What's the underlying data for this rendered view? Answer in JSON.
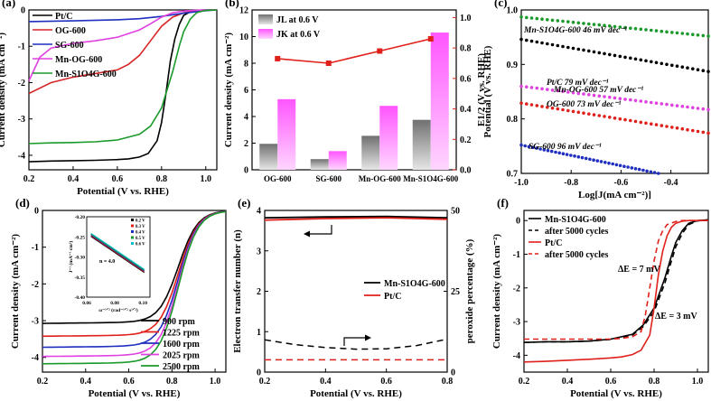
{
  "figure": {
    "description_free": true
  },
  "chart_data": [
    {
      "panel": "a",
      "type": "line",
      "panel_label": "(a)",
      "xlabel": "Potential (V vs. RHE)",
      "ylabel": "Current density (mA cm⁻²)",
      "xlim": [
        0.2,
        1.05
      ],
      "ylim": [
        -4.4,
        0.0
      ],
      "xticks": [
        0.2,
        0.4,
        0.6,
        0.8,
        1.0
      ],
      "xtick_labels": [
        "0.2",
        "0.4",
        "0.6",
        "0.8",
        "1.0"
      ],
      "yticks": [
        0,
        -1,
        -2,
        -3,
        -4
      ],
      "ytick_labels": [
        "0",
        "-1",
        "-2",
        "-3",
        "-4"
      ],
      "legend": [
        "Pt/C",
        "OG-600",
        "SG-600",
        "Mn-OG-600",
        "Mn-S1O4G-600"
      ],
      "series": [
        {
          "name": "Pt/C",
          "color": "#000000",
          "x": [
            0.2,
            0.3,
            0.4,
            0.5,
            0.6,
            0.65,
            0.7,
            0.74,
            0.78,
            0.8,
            0.82,
            0.84,
            0.86,
            0.88,
            0.9,
            0.93,
            0.96,
            1.0,
            1.05
          ],
          "y": [
            -4.18,
            -4.16,
            -4.15,
            -4.14,
            -4.12,
            -4.1,
            -4.05,
            -3.95,
            -3.6,
            -3.1,
            -2.3,
            -1.4,
            -0.8,
            -0.4,
            -0.15,
            -0.05,
            -0.01,
            0,
            0
          ]
        },
        {
          "name": "OG-600",
          "color": "#d62728",
          "x": [
            0.2,
            0.3,
            0.4,
            0.5,
            0.6,
            0.65,
            0.7,
            0.75,
            0.8,
            0.85,
            0.9,
            0.95,
            1.0,
            1.05
          ],
          "y": [
            -2.3,
            -2.0,
            -1.85,
            -1.75,
            -1.65,
            -1.5,
            -1.25,
            -0.85,
            -0.45,
            -0.2,
            -0.08,
            -0.03,
            -0.01,
            0
          ]
        },
        {
          "name": "SG-600",
          "color": "#1f2fbf",
          "x": [
            0.2,
            0.4,
            0.6,
            0.7,
            0.8,
            0.9,
            1.0,
            1.05
          ],
          "y": [
            -0.32,
            -0.3,
            -0.27,
            -0.24,
            -0.18,
            -0.09,
            -0.02,
            0
          ]
        },
        {
          "name": "Mn-OG-600",
          "color": "#e040e0",
          "x": [
            0.2,
            0.25,
            0.3,
            0.4,
            0.5,
            0.6,
            0.7,
            0.75,
            0.8,
            0.85,
            0.9,
            0.95,
            1.0,
            1.05
          ],
          "y": [
            -1.95,
            -1.3,
            -1.05,
            -0.92,
            -0.85,
            -0.75,
            -0.55,
            -0.38,
            -0.2,
            -0.08,
            -0.03,
            -0.01,
            0,
            0
          ]
        },
        {
          "name": "Mn-S1O4G-600",
          "color": "#1a9a2a",
          "x": [
            0.2,
            0.3,
            0.4,
            0.5,
            0.6,
            0.7,
            0.75,
            0.8,
            0.85,
            0.88,
            0.9,
            0.93,
            0.96,
            1.0,
            1.05
          ],
          "y": [
            -3.68,
            -3.66,
            -3.65,
            -3.63,
            -3.58,
            -3.42,
            -3.2,
            -2.7,
            -1.7,
            -1.0,
            -0.6,
            -0.25,
            -0.07,
            -0.01,
            0
          ]
        }
      ]
    },
    {
      "panel": "b",
      "type": "bar",
      "panel_label": "(b)",
      "categories": [
        "OG-600",
        "SG-600",
        "Mn-OG-600",
        "Mn-S1O4G-600"
      ],
      "ylabel": "Current density (mA cm⁻²)",
      "y2label": "E1/2 (V vs. RHE)",
      "ylim": [
        0,
        12
      ],
      "y2lim": [
        0,
        1.05
      ],
      "yticks": [
        0,
        2,
        4,
        6,
        8,
        10,
        12
      ],
      "y2ticks": [
        0,
        0.2,
        0.4,
        0.6,
        0.8,
        1.0
      ],
      "y2tick_labels": [
        "0.0",
        "0.2",
        "0.4",
        "0.6",
        "0.8",
        "1.0"
      ],
      "legend": [
        "JL at 0.6 V",
        "JK at 0.6 V"
      ],
      "series": [
        {
          "name": "JL at 0.6 V",
          "color": "#8c8c8c",
          "values": [
            1.95,
            0.8,
            2.55,
            3.75
          ]
        },
        {
          "name": "JK at 0.6 V",
          "color": "#ff66ff",
          "values": [
            5.3,
            1.4,
            4.8,
            10.3
          ]
        },
        {
          "name": "E1/2",
          "color": "#e0201a",
          "axis": "right",
          "values": [
            0.73,
            0.7,
            0.78,
            0.86
          ]
        }
      ]
    },
    {
      "panel": "c",
      "type": "scatter",
      "panel_label": "(c)",
      "xlabel": "Log[J(mA cm⁻²)]",
      "ylabel": "Potential (V vs. RHE)",
      "xlim": [
        -1.0,
        -0.25
      ],
      "ylim": [
        0.7,
        1.0
      ],
      "xticks": [
        -1.0,
        -0.8,
        -0.6,
        -0.4
      ],
      "xtick_labels": [
        "-1.0",
        "-0.8",
        "-0.6",
        "-0.4"
      ],
      "yticks": [
        0.7,
        0.8,
        0.9,
        1.0
      ],
      "ytick_labels": [
        "0.7",
        "0.8",
        "0.9",
        "1.0"
      ],
      "annotations": [
        "Mn-S1O4G-600 46 mV dec⁻¹",
        "Pt/C 79 mV dec⁻¹",
        "Mn-OG-600 57 mV dec⁻¹",
        "OG-600 73 mV dec⁻¹",
        "SG-600 96 mV dec⁻¹"
      ],
      "series": [
        {
          "name": "Mn-S1O4G-600",
          "color": "#1a9a2a",
          "x": [
            -1.0,
            -0.25
          ],
          "y": [
            0.987,
            0.952
          ]
        },
        {
          "name": "Pt/C",
          "color": "#000000",
          "x": [
            -1.0,
            -0.25
          ],
          "y": [
            0.946,
            0.887
          ]
        },
        {
          "name": "Mn-OG-600",
          "color": "#e040e0",
          "x": [
            -1.0,
            -0.25
          ],
          "y": [
            0.86,
            0.817
          ]
        },
        {
          "name": "OG-600",
          "color": "#e0201a",
          "x": [
            -1.0,
            -0.25
          ],
          "y": [
            0.829,
            0.774
          ]
        },
        {
          "name": "SG-600",
          "color": "#1f2fbf",
          "x": [
            -1.0,
            -0.45
          ],
          "y": [
            0.752,
            0.7
          ]
        }
      ]
    },
    {
      "panel": "d",
      "type": "line",
      "panel_label": "(d)",
      "xlabel": "Potential (V vs. RHE)",
      "ylabel": "Current density (mA cm⁻²)",
      "xlim": [
        0.2,
        1.05
      ],
      "ylim": [
        -4.4,
        0.0
      ],
      "xticks": [
        0.2,
        0.4,
        0.6,
        0.8,
        1.0
      ],
      "xtick_labels": [
        "0.2",
        "0.4",
        "0.6",
        "0.8",
        "1.0"
      ],
      "yticks": [
        0,
        -1,
        -2,
        -3,
        -4
      ],
      "ytick_labels": [
        "0",
        "-1",
        "-2",
        "-3",
        "-4"
      ],
      "legend": [
        "900 rpm",
        "1225 rpm",
        "1600 rpm",
        "2025 rpm",
        "2500 rpm"
      ],
      "series": [
        {
          "name": "900 rpm",
          "color": "#000000",
          "limit": -3.05
        },
        {
          "name": "1225 rpm",
          "color": "#e0201a",
          "limit": -3.4
        },
        {
          "name": "1600 rpm",
          "color": "#1f2fbf",
          "limit": -3.7
        },
        {
          "name": "2025 rpm",
          "color": "#e040e0",
          "limit": -3.95
        },
        {
          "name": "2500 rpm",
          "color": "#1a9a2a",
          "limit": -4.15
        }
      ],
      "inset": {
        "xlabel": "ω⁻¹ᐟ² (rad⁻¹ᐟ² s¹ᐟ²)",
        "ylabel": "J⁻¹ (mA⁻¹ cm²)",
        "annotation": "n = 4.0",
        "xlim": [
          0.06,
          0.105
        ],
        "ylim": [
          -0.4,
          -0.2
        ],
        "xticks": [
          0.06,
          0.08,
          0.1
        ],
        "xtick_labels": [
          "0.06",
          "0.08",
          "0.10"
        ],
        "yticks": [
          -0.2,
          -0.25,
          -0.3,
          -0.35,
          -0.4
        ],
        "ytick_labels": [
          "-0.20",
          "-0.25",
          "-0.30",
          "-0.35",
          "-0.40"
        ],
        "legend": [
          "0.2 V",
          "0.3 V",
          "0.4 V",
          "0.5 V",
          "0.6 V"
        ],
        "colors": [
          "#000000",
          "#e0201a",
          "#1f2fbf",
          "#1a9a2a",
          "#00bcd4"
        ],
        "line": {
          "x": [
            0.063,
            0.101
          ],
          "y": [
            -0.245,
            -0.335
          ]
        }
      }
    },
    {
      "panel": "e",
      "type": "line",
      "panel_label": "(e)",
      "xlabel": "Potential (V vs. RHE)",
      "ylabel": "Electron transfer number (n)",
      "y2label": "peroxide percentage (%)",
      "xlim": [
        0.2,
        0.8
      ],
      "ylim": [
        0,
        4
      ],
      "xticks": [
        0.2,
        0.4,
        0.6,
        0.8
      ],
      "xtick_labels": [
        "0.2",
        "0.4",
        "0.6",
        "0.8"
      ],
      "yticks": [
        0,
        1,
        2,
        3,
        4
      ],
      "ytick_labels": [
        "0",
        "1",
        "2",
        "3",
        "4"
      ],
      "y2ticks": [
        0,
        25,
        50
      ],
      "y2tick_labels": [
        "0",
        "25",
        "50"
      ],
      "legend": [
        "Mn-S1O4G-600",
        "Pt/C"
      ],
      "series": [
        {
          "name": "Mn-S1O4G-600 n",
          "color": "#000000",
          "x": [
            0.2,
            0.4,
            0.6,
            0.8
          ],
          "y": [
            3.82,
            3.84,
            3.85,
            3.82
          ]
        },
        {
          "name": "Pt/C n",
          "color": "#e0201a",
          "x": [
            0.2,
            0.4,
            0.6,
            0.8
          ],
          "y": [
            3.76,
            3.8,
            3.82,
            3.78
          ]
        },
        {
          "name": "Mn-S1O4G-600 peroxide",
          "color": "#000000",
          "x": [
            0.2,
            0.3,
            0.4,
            0.5,
            0.6,
            0.7,
            0.8
          ],
          "y": [
            10.0,
            8.5,
            7.6,
            7.1,
            7.2,
            8.2,
            10.2
          ]
        },
        {
          "name": "Pt/C peroxide",
          "color": "#e0201a",
          "x": [
            0.2,
            0.8
          ],
          "y": [
            3.8,
            3.8
          ]
        }
      ]
    },
    {
      "panel": "f",
      "type": "line",
      "panel_label": "(f)",
      "xlabel": "Potential (V vs. RHE)",
      "ylabel": "Current density (mA cm⁻²)",
      "xlim": [
        0.2,
        1.05
      ],
      "ylim": [
        -4.5,
        0.3
      ],
      "xticks": [
        0.2,
        0.4,
        0.6,
        0.8,
        1.0
      ],
      "xtick_labels": [
        "0.2",
        "0.4",
        "0.6",
        "0.8",
        "1.0"
      ],
      "yticks": [
        0,
        -1,
        -2,
        -3,
        -4
      ],
      "ytick_labels": [
        "0",
        "-1",
        "-2",
        "-3",
        "-4"
      ],
      "legend": [
        "Mn-S1O4G-600",
        "after 5000 cycles",
        "Pt/C",
        "after 5000 cycles"
      ],
      "annotations": [
        "ΔE = 7 mV",
        "ΔE = 3 mV"
      ],
      "series": [
        {
          "name": "Mn-S1O4G-600",
          "color": "#000000",
          "dash": false,
          "x": [
            0.2,
            0.3,
            0.4,
            0.5,
            0.6,
            0.7,
            0.75,
            0.8,
            0.85,
            0.88,
            0.9,
            0.93,
            0.96,
            1.0,
            1.05
          ],
          "y": [
            -3.62,
            -3.6,
            -3.6,
            -3.58,
            -3.52,
            -3.38,
            -3.1,
            -2.6,
            -1.7,
            -1.05,
            -0.65,
            -0.3,
            -0.08,
            0,
            0.02
          ]
        },
        {
          "name": "after 5000 cycles",
          "color": "#000000",
          "dash": true,
          "x": [
            0.2,
            0.3,
            0.4,
            0.5,
            0.6,
            0.7,
            0.75,
            0.8,
            0.85,
            0.88,
            0.9,
            0.93,
            0.96,
            1.0,
            1.05
          ],
          "y": [
            -3.62,
            -3.6,
            -3.6,
            -3.58,
            -3.53,
            -3.4,
            -3.15,
            -2.7,
            -1.85,
            -1.2,
            -0.78,
            -0.38,
            -0.12,
            -0.01,
            0.02
          ]
        },
        {
          "name": "Pt/C",
          "color": "#e0201a",
          "dash": false,
          "x": [
            0.2,
            0.3,
            0.4,
            0.5,
            0.6,
            0.65,
            0.7,
            0.74,
            0.78,
            0.8,
            0.82,
            0.84,
            0.86,
            0.88,
            0.9,
            0.93,
            0.96,
            1.0,
            1.05
          ],
          "y": [
            -4.2,
            -4.18,
            -4.15,
            -4.12,
            -4.08,
            -4.05,
            -3.98,
            -3.85,
            -3.4,
            -2.6,
            -1.6,
            -0.9,
            -0.45,
            -0.2,
            -0.08,
            -0.02,
            0,
            0,
            0
          ]
        },
        {
          "name": "after 5000 cycles",
          "color": "#e0201a",
          "dash": true,
          "x": [
            0.2,
            0.3,
            0.4,
            0.5,
            0.6,
            0.65,
            0.7,
            0.74,
            0.76,
            0.78,
            0.8,
            0.82,
            0.84,
            0.86,
            0.9,
            0.93,
            0.96,
            1.0,
            1.05
          ],
          "y": [
            -3.52,
            -3.52,
            -3.52,
            -3.52,
            -3.52,
            -3.5,
            -3.45,
            -3.3,
            -2.8,
            -2.0,
            -1.2,
            -0.6,
            -0.3,
            -0.12,
            -0.03,
            0,
            0,
            0,
            0
          ]
        }
      ]
    }
  ]
}
